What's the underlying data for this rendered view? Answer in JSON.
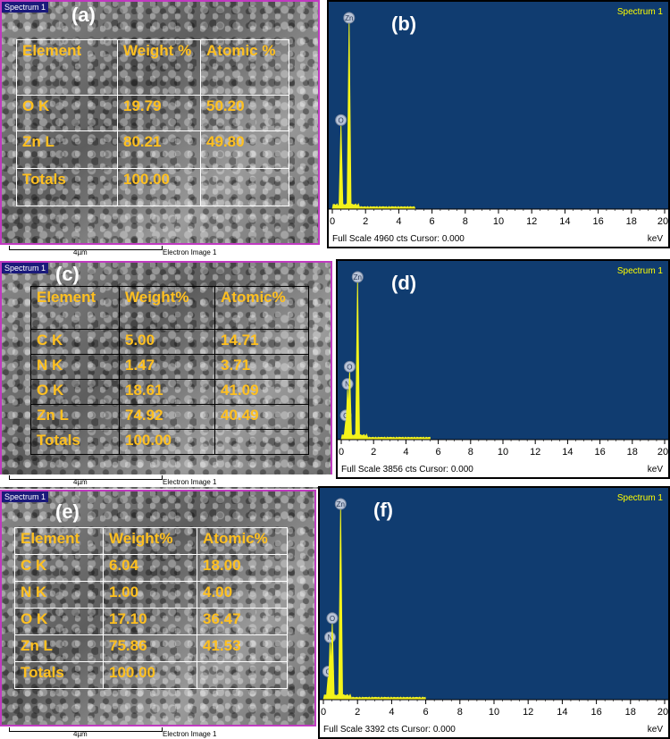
{
  "panels": [
    {
      "id": "a",
      "label": "(a)",
      "tag": "Spectrum 1",
      "scale_length": "4µm",
      "image_name": "Electron Image 1",
      "headers": [
        "Element",
        "Weight %",
        "Atomic %"
      ],
      "rows": [
        [
          "O K",
          "19.79",
          "50.20"
        ],
        [
          "Zn L",
          "80.21",
          "49.80"
        ],
        [
          "Totals",
          "100.00",
          ""
        ]
      ]
    },
    {
      "id": "c",
      "label": "(c)",
      "tag": "Spectrum 1",
      "scale_length": "4µm",
      "image_name": "Electron Image 1",
      "headers": [
        "Element",
        "Weight%",
        "Atomic%"
      ],
      "rows": [
        [
          "C K",
          "5.00",
          "14.71"
        ],
        [
          "N K",
          "1.47",
          "3.71"
        ],
        [
          "O K",
          "18.61",
          "41.09"
        ],
        [
          "Zn L",
          "74.92",
          "40.49"
        ],
        [
          "Totals",
          "100.00",
          ""
        ]
      ]
    },
    {
      "id": "e",
      "label": "(e)",
      "tag": "Spectrum 1",
      "scale_length": "4µm",
      "image_name": "Electron Image 1",
      "headers": [
        "Element",
        "Weight%",
        "Atomic%"
      ],
      "rows": [
        [
          "C K",
          "6.04",
          "18.00"
        ],
        [
          "N K",
          "1.00",
          "4.00"
        ],
        [
          "O K",
          "17.10",
          "36.47"
        ],
        [
          "Zn L",
          "75.86",
          "41.53"
        ],
        [
          "Totals",
          "100.00",
          ""
        ]
      ]
    }
  ],
  "chart_data": [
    {
      "type": "line",
      "label": "(b)",
      "title": "Spectrum 1",
      "xlabel": "keV",
      "xlim": [
        0,
        20
      ],
      "xticks": [
        0,
        2,
        4,
        6,
        8,
        10,
        12,
        14,
        16,
        18,
        20
      ],
      "footer": "Full Scale 4960 cts Cursor: 0.000",
      "peaks": [
        {
          "element": "O",
          "x": 0.52,
          "height": 0.45
        },
        {
          "element": "Zn",
          "x": 1.01,
          "height": 1.0
        }
      ],
      "noise_end": 5.0
    },
    {
      "type": "line",
      "label": "(d)",
      "title": "Spectrum 1",
      "xlabel": "keV",
      "xlim": [
        0,
        20
      ],
      "xticks": [
        0,
        2,
        4,
        6,
        8,
        10,
        12,
        14,
        16,
        18,
        20
      ],
      "footer": "Full Scale 3856 cts Cursor: 0.000",
      "peaks": [
        {
          "element": "C",
          "x": 0.28,
          "height": 0.12
        },
        {
          "element": "N",
          "x": 0.39,
          "height": 0.32
        },
        {
          "element": "O",
          "x": 0.52,
          "height": 0.43
        },
        {
          "element": "Zn",
          "x": 1.01,
          "height": 1.0
        }
      ],
      "noise_end": 5.5
    },
    {
      "type": "line",
      "label": "(f)",
      "title": "Spectrum 1",
      "xlabel": "keV",
      "xlim": [
        0,
        20
      ],
      "xticks": [
        0,
        2,
        4,
        6,
        8,
        10,
        12,
        14,
        16,
        18,
        20
      ],
      "footer": "Full Scale 3392 cts Cursor: 0.000",
      "peaks": [
        {
          "element": "C",
          "x": 0.28,
          "height": 0.12
        },
        {
          "element": "N",
          "x": 0.39,
          "height": 0.3
        },
        {
          "element": "O",
          "x": 0.52,
          "height": 0.4
        },
        {
          "element": "Zn",
          "x": 1.01,
          "height": 1.0
        }
      ],
      "noise_end": 6.0
    }
  ]
}
